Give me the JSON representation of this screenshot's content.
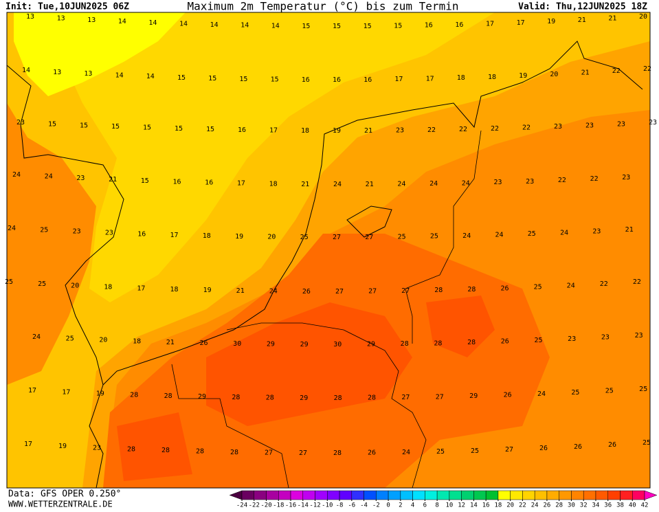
{
  "header": {
    "init": "Init: Tue,10JUN2025 06Z",
    "title": "Maximum 2m Temperatur (°C) bis zum Termin",
    "valid": "Valid: Thu,12JUN2025 18Z"
  },
  "map": {
    "label_rows": [
      [
        13,
        13,
        13,
        14,
        14,
        14,
        14,
        14,
        14,
        15,
        15,
        15,
        15,
        16,
        16,
        17,
        17,
        19,
        21,
        21,
        20
      ],
      [
        14,
        13,
        13,
        14,
        14,
        15,
        15,
        15,
        15,
        16,
        16,
        16,
        17,
        17,
        18,
        18,
        19,
        20,
        21,
        22,
        22
      ],
      [
        23,
        15,
        15,
        15,
        15,
        15,
        15,
        16,
        17,
        18,
        19,
        21,
        23,
        22,
        22,
        22,
        22,
        23,
        23,
        23,
        23
      ],
      [
        24,
        24,
        23,
        21,
        15,
        16,
        16,
        17,
        18,
        21,
        24,
        21,
        24,
        24,
        24,
        23,
        23,
        22,
        22,
        23
      ],
      [
        24,
        25,
        23,
        23,
        16,
        17,
        18,
        19,
        20,
        25,
        27,
        27,
        25,
        25,
        24,
        24,
        25,
        24,
        23,
        21
      ],
      [
        25,
        25,
        20,
        18,
        17,
        18,
        19,
        21,
        24,
        26,
        27,
        27,
        27,
        28,
        28,
        26,
        25,
        24,
        22,
        22
      ],
      [
        24,
        25,
        20,
        18,
        21,
        26,
        30,
        29,
        29,
        30,
        29,
        28,
        28,
        28,
        26,
        25,
        23,
        23,
        23
      ],
      [
        17,
        17,
        19,
        28,
        28,
        29,
        28,
        28,
        29,
        28,
        28,
        27,
        27,
        29,
        26,
        24,
        25,
        25,
        25
      ],
      [
        17,
        19,
        23,
        28,
        28,
        28,
        28,
        27,
        27,
        28,
        26,
        24,
        25,
        25,
        27,
        26,
        26,
        26,
        25
      ]
    ]
  },
  "colorbar": {
    "ticks": [
      -24,
      -22,
      -20,
      -18,
      -16,
      -14,
      -12,
      -10,
      -8,
      -6,
      -4,
      -2,
      0,
      2,
      4,
      6,
      8,
      10,
      12,
      14,
      16,
      18,
      20,
      22,
      24,
      26,
      28,
      30,
      32,
      34,
      36,
      38,
      40,
      42
    ],
    "colors": [
      "#4b0040",
      "#6a0060",
      "#8a0080",
      "#a800a0",
      "#c400c0",
      "#dc00e0",
      "#c000f0",
      "#a000ff",
      "#8000ff",
      "#6000ff",
      "#3030ff",
      "#0050ff",
      "#0080ff",
      "#00a0ff",
      "#00c0ff",
      "#00e0ff",
      "#00f0e0",
      "#00e8b0",
      "#00e090",
      "#00d070",
      "#00c850",
      "#00c030",
      "#ffff00",
      "#ffe800",
      "#ffd400",
      "#ffc000",
      "#ffac00",
      "#ff9800",
      "#ff8400",
      "#ff7000",
      "#ff5a00",
      "#ff4000",
      "#ff2020",
      "#ff0060",
      "#ff00c0"
    ]
  },
  "footer": {
    "data": "Data: GFS OPER 0.250°",
    "site": "WWW.WETTERZENTRALE.DE"
  }
}
